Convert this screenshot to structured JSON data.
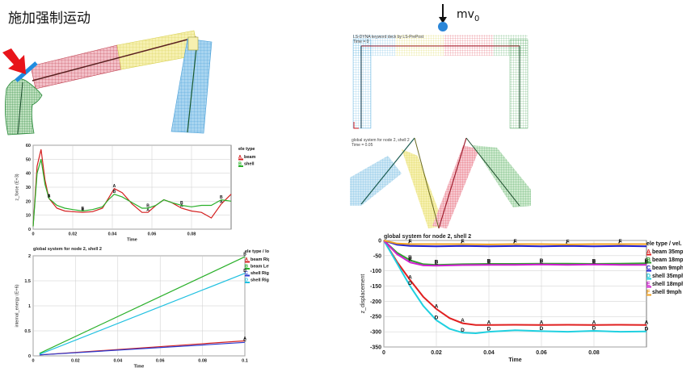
{
  "header": {
    "title": "施加强制运动",
    "mv_label": "mv",
    "mv_sub": "0"
  },
  "fem_top_right": {
    "caption1": "LS-DYNA keyword deck by LS-PrePost",
    "caption2": "Time =     0"
  },
  "fem_mid_right": {
    "caption1": "global system for node 2, shell 2",
    "caption2": "Time =     0.05"
  },
  "chart_data": [
    {
      "id": "chart1",
      "type": "line",
      "title": "",
      "xlabel": "Time",
      "ylabel": "z_force (E+3)",
      "xlim": [
        0,
        0.1
      ],
      "ylim": [
        0,
        60
      ],
      "xticks": [
        "0",
        "0.02",
        "0.04",
        "0.06",
        "0.08"
      ],
      "yticks": [
        "0",
        "10",
        "20",
        "30",
        "40",
        "50",
        "60"
      ],
      "legend_title": "ele type",
      "series": [
        {
          "name": "beam",
          "marker": "A",
          "color": "#d42020",
          "x": [
            0,
            0.002,
            0.004,
            0.006,
            0.008,
            0.012,
            0.016,
            0.02,
            0.025,
            0.03,
            0.035,
            0.038,
            0.041,
            0.045,
            0.05,
            0.055,
            0.058,
            0.062,
            0.066,
            0.07,
            0.075,
            0.08,
            0.085,
            0.09,
            0.095,
            0.1
          ],
          "values": [
            2,
            45,
            57,
            35,
            22,
            15,
            13,
            12.5,
            12,
            12.5,
            15,
            22,
            29,
            26,
            18,
            12,
            12,
            17,
            21,
            19,
            15,
            13,
            12,
            8,
            18,
            25
          ]
        },
        {
          "name": "shell",
          "marker": "B",
          "color": "#2ab02a",
          "x": [
            0,
            0.002,
            0.004,
            0.006,
            0.008,
            0.012,
            0.016,
            0.02,
            0.025,
            0.03,
            0.035,
            0.038,
            0.041,
            0.045,
            0.05,
            0.055,
            0.058,
            0.062,
            0.066,
            0.07,
            0.075,
            0.08,
            0.085,
            0.09,
            0.095,
            0.1
          ],
          "values": [
            2,
            40,
            50,
            32,
            22,
            17,
            15,
            14,
            13,
            14,
            16,
            21,
            25,
            23,
            19,
            15,
            15,
            17,
            21,
            19,
            17,
            16,
            17,
            17,
            21,
            20
          ]
        }
      ]
    },
    {
      "id": "chart2",
      "type": "line",
      "title": "global system for node 2, shell 2",
      "xlabel": "Time",
      "ylabel": "internal_energy (E+6)",
      "xlim": [
        0,
        0.1
      ],
      "ylim": [
        0,
        2
      ],
      "xticks": [
        "0",
        "0.02",
        "0.04",
        "0.06",
        "0.08",
        "0.1"
      ],
      "yticks": [
        "0",
        "0.5",
        "1",
        "1.5",
        "2"
      ],
      "legend_title": "ele type / location",
      "series": [
        {
          "name": "beam Right Col",
          "marker": "A",
          "color": "#d42020",
          "x": [
            0.003,
            0.1
          ],
          "values": [
            0.02,
            0.3
          ]
        },
        {
          "name": "beam Left col",
          "marker": "B",
          "color": "#2ab02a",
          "x": [
            0.003,
            0.1
          ],
          "values": [
            0.05,
            1.98
          ]
        },
        {
          "name": "shell Right Col",
          "marker": "C",
          "color": "#2a3ad0",
          "x": [
            0.003,
            0.1
          ],
          "values": [
            0.02,
            0.27
          ]
        },
        {
          "name": "shell Right Col",
          "marker": "D",
          "color": "#20c0e0",
          "x": [
            0.003,
            0.1
          ],
          "values": [
            0.03,
            1.65
          ]
        }
      ]
    },
    {
      "id": "chart3",
      "type": "line",
      "title": "global system for node 2, shell 2",
      "xlabel": "Time",
      "ylabel": "z_displacement",
      "xlim": [
        0,
        0.1
      ],
      "ylim": [
        -350,
        0
      ],
      "xticks": [
        "0",
        "0.02",
        "0.04",
        "0.06",
        "0.08"
      ],
      "yticks": [
        "0",
        "-50",
        "-100",
        "-150",
        "-200",
        "-250",
        "-300",
        "-350"
      ],
      "legend_title": "ele type / vel.",
      "series": [
        {
          "name": "beam 35mph",
          "marker": "A",
          "color": "#e02020",
          "x": [
            0,
            0.005,
            0.01,
            0.015,
            0.02,
            0.025,
            0.03,
            0.035,
            0.04,
            0.05,
            0.06,
            0.07,
            0.08,
            0.09,
            0.1
          ],
          "values": [
            0,
            -70,
            -130,
            -185,
            -225,
            -255,
            -272,
            -278,
            -278,
            -277,
            -278,
            -277,
            -278,
            -277,
            -278
          ]
        },
        {
          "name": "beam 18mph",
          "marker": "B",
          "color": "#30a030",
          "x": [
            0,
            0.005,
            0.01,
            0.015,
            0.02,
            0.03,
            0.04,
            0.05,
            0.06,
            0.07,
            0.08,
            0.09,
            0.1
          ],
          "values": [
            0,
            -40,
            -65,
            -78,
            -80,
            -78,
            -77,
            -77,
            -76,
            -76,
            -77,
            -76,
            -75
          ]
        },
        {
          "name": "beam 9mph",
          "marker": "C",
          "color": "#2020d0",
          "x": [
            0,
            0.005,
            0.01,
            0.02,
            0.03,
            0.04,
            0.05,
            0.06,
            0.07,
            0.08,
            0.09,
            0.1
          ],
          "values": [
            0,
            -14,
            -18,
            -19,
            -18,
            -19,
            -18,
            -19,
            -18,
            -19,
            -18,
            -19
          ]
        },
        {
          "name": "shell 35mph",
          "marker": "D",
          "color": "#20d0e0",
          "x": [
            0,
            0.005,
            0.01,
            0.015,
            0.02,
            0.025,
            0.03,
            0.035,
            0.04,
            0.05,
            0.06,
            0.07,
            0.08,
            0.09,
            0.1
          ],
          "values": [
            0,
            -75,
            -150,
            -215,
            -262,
            -290,
            -303,
            -305,
            -300,
            -295,
            -298,
            -300,
            -297,
            -300,
            -299
          ]
        },
        {
          "name": "shell 18mph",
          "marker": "E",
          "color": "#d020d0",
          "x": [
            0,
            0.005,
            0.01,
            0.015,
            0.02,
            0.03,
            0.04,
            0.05,
            0.06,
            0.07,
            0.08,
            0.09,
            0.1
          ],
          "values": [
            0,
            -45,
            -72,
            -82,
            -83,
            -81,
            -80,
            -80,
            -79,
            -80,
            -79,
            -80,
            -80
          ]
        },
        {
          "name": "shell 9mph",
          "marker": "F",
          "color": "#f0a020",
          "x": [
            0,
            0.005,
            0.01,
            0.02,
            0.03,
            0.04,
            0.05,
            0.06,
            0.07,
            0.08,
            0.09,
            0.1
          ],
          "values": [
            0,
            -10,
            -12,
            -12,
            -12,
            -13,
            -12,
            -12,
            -13,
            -12,
            -12,
            -12
          ]
        }
      ]
    }
  ]
}
